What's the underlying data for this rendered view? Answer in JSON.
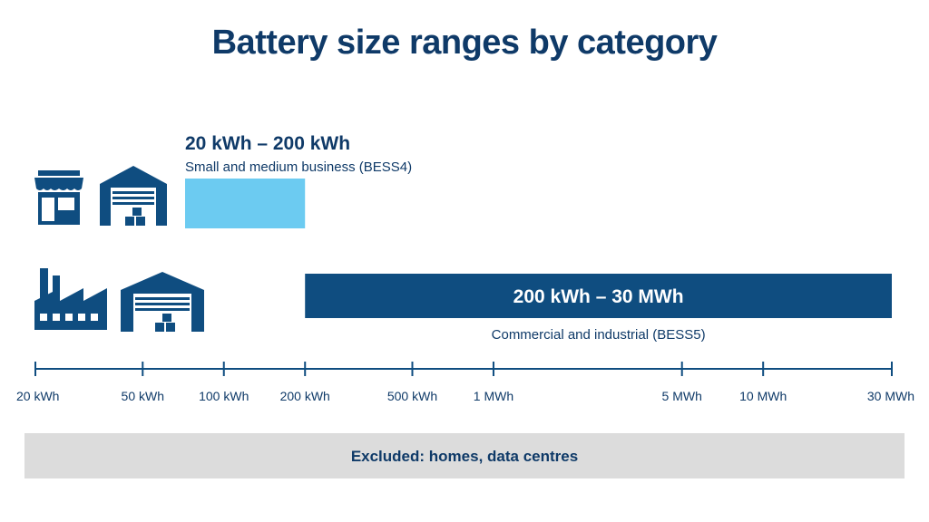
{
  "title": "Battery size ranges by category",
  "colors": {
    "navy": "#0f4d80",
    "light_blue": "#6ccbf1",
    "text": "#0f3a68",
    "excluded_bg": "#dcdcdc"
  },
  "icons": {
    "business": [
      "shop-icon",
      "warehouse-icon"
    ],
    "industrial": [
      "factory-icon",
      "warehouse-icon"
    ]
  },
  "chart_data": {
    "type": "bar",
    "orientation": "horizontal-range",
    "scale": "log",
    "unit": "kWh",
    "xlim": [
      20,
      30000
    ],
    "ticks": [
      {
        "value": 20,
        "label": "20 kWh"
      },
      {
        "value": 50,
        "label": "50 kWh"
      },
      {
        "value": 100,
        "label": "100 kWh"
      },
      {
        "value": 200,
        "label": "200 kWh"
      },
      {
        "value": 500,
        "label": "500 kWh"
      },
      {
        "value": 1000,
        "label": "1 MWh"
      },
      {
        "value": 5000,
        "label": "5 MWh"
      },
      {
        "value": 10000,
        "label": "10 MWh"
      },
      {
        "value": 30000,
        "label": "30 MWh"
      }
    ],
    "ranges": [
      {
        "range_label": "20 kWh – 200 kWh",
        "category": "Small and medium business (BESS4)",
        "start": 20,
        "end": 200,
        "color": "#6ccbf1"
      },
      {
        "range_label": "200 kWh – 30 MWh",
        "category": "Commercial and industrial (BESS5)",
        "start": 200,
        "end": 30000,
        "color": "#0f4d80"
      }
    ],
    "excluded": "Excluded: homes, data centres"
  }
}
